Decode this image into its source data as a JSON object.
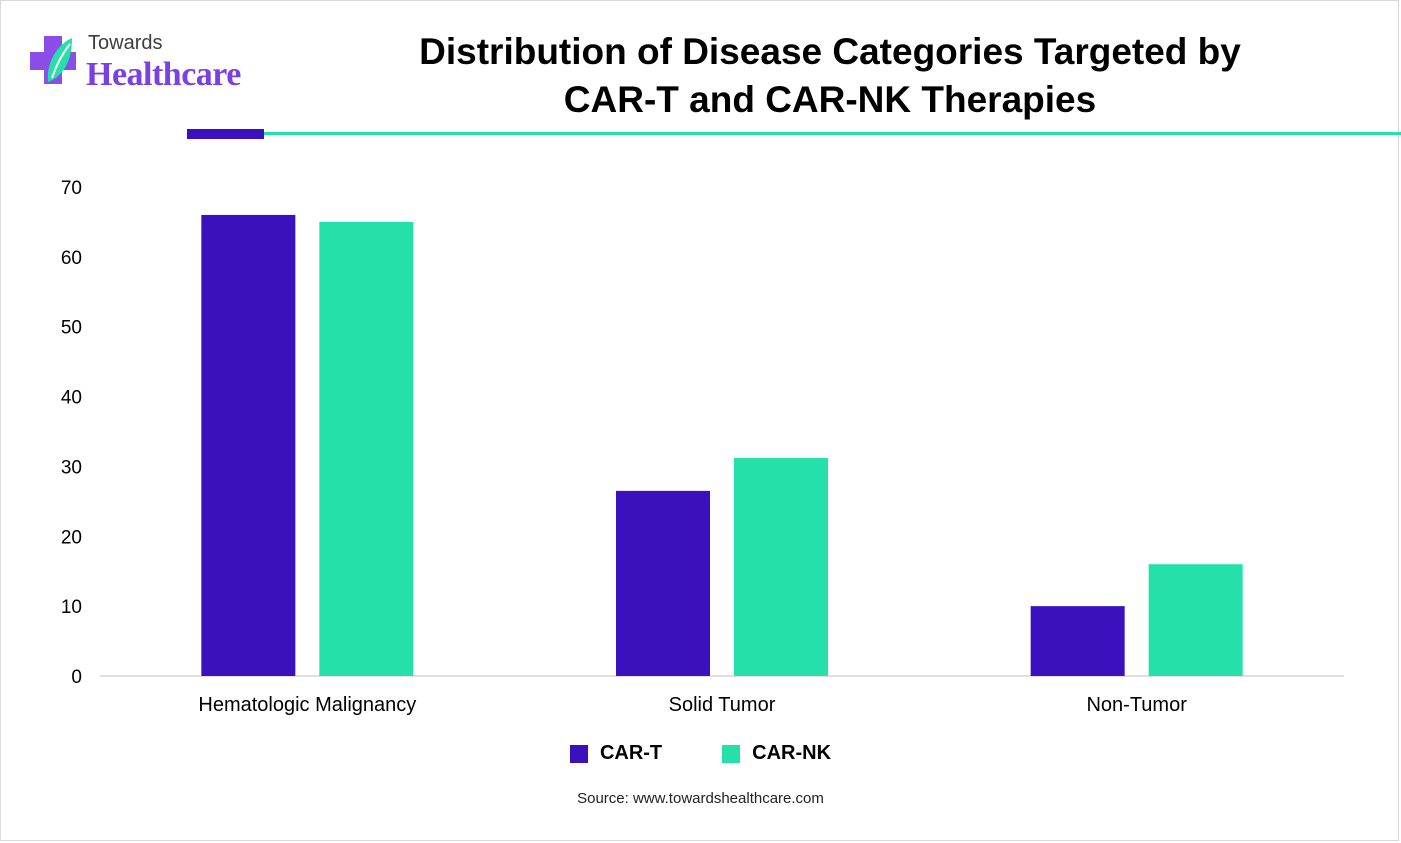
{
  "brand": {
    "name_top": "Towards",
    "name_bottom": "Healthcare"
  },
  "header": {
    "title_line1": "Distribution of Disease Categories Targeted by",
    "title_line2": "CAR-T and CAR-NK Therapies"
  },
  "colors": {
    "car_t": "#3b10bd",
    "car_nk": "#25e0a8",
    "rule_dark": "#3a10c0",
    "rule_teal": "#25e0a8"
  },
  "chart_data": {
    "type": "bar",
    "categories": [
      "Hematologic Malignancy",
      "Solid Tumor",
      "Non-Tumor"
    ],
    "series": [
      {
        "name": "CAR-T",
        "values": [
          66,
          26.5,
          10
        ]
      },
      {
        "name": "CAR-NK",
        "values": [
          65,
          31.2,
          16
        ]
      }
    ],
    "ylim": [
      0,
      70
    ],
    "yticks": [
      0,
      10,
      20,
      30,
      40,
      50,
      60,
      70
    ],
    "grid": false,
    "legend": "bottom-center"
  },
  "footer": {
    "source": "Source: www.towardshealthcare.com"
  }
}
